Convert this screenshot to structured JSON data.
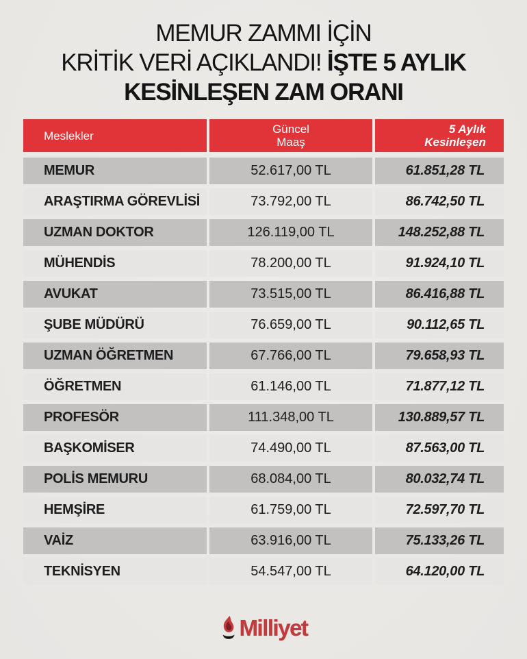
{
  "colors": {
    "background": "#ebe9e6",
    "header_red": "#e13438",
    "header_text": "#ffffff",
    "row_dark_gray": "#c2c1c0",
    "row_light_gray": "#e7e5e3",
    "body_text": "#1d1d1d",
    "logo_red": "#c33a3e"
  },
  "title": {
    "line1": "MEMUR ZAMMI İÇİN",
    "line2_regular": "KRİTİK VERİ AÇIKLANDI!",
    "line2_bold": "İŞTE 5 AYLIK",
    "line3": "KESİNLEŞEN ZAM ORANI"
  },
  "table": {
    "header": {
      "col1": "Meslekler",
      "col2_line1": "Güncel",
      "col2_line2": "Maaş",
      "col3_line1": "5 Aylık",
      "col3_line2": "Kesinleşen"
    },
    "rows": [
      {
        "profession": "MEMUR",
        "current_salary": "52.617,00 TL",
        "confirmed_salary": "61.851,28 TL"
      },
      {
        "profession": "ARAŞTIRMA GÖREVLİSİ",
        "current_salary": "73.792,00 TL",
        "confirmed_salary": "86.742,50 TL"
      },
      {
        "profession": "UZMAN DOKTOR",
        "current_salary": "126.119,00 TL",
        "confirmed_salary": "148.252,88 TL"
      },
      {
        "profession": "MÜHENDİS",
        "current_salary": "78.200,00 TL",
        "confirmed_salary": "91.924,10 TL"
      },
      {
        "profession": "AVUKAT",
        "current_salary": "73.515,00 TL",
        "confirmed_salary": "86.416,88 TL"
      },
      {
        "profession": "ŞUBE MÜDÜRÜ",
        "current_salary": "76.659,00 TL",
        "confirmed_salary": "90.112,65 TL"
      },
      {
        "profession": "UZMAN ÖĞRETMEN",
        "current_salary": "67.766,00 TL",
        "confirmed_salary": "79.658,93 TL"
      },
      {
        "profession": "ÖĞRETMEN",
        "current_salary": "61.146,00 TL",
        "confirmed_salary": "71.877,12 TL"
      },
      {
        "profession": "PROFESÖR",
        "current_salary": "111.348,00 TL",
        "confirmed_salary": "130.889,57 TL"
      },
      {
        "profession": "BAŞKOMİSER",
        "current_salary": "74.490,00 TL",
        "confirmed_salary": "87.563,00 TL"
      },
      {
        "profession": "POLİS MEMURU",
        "current_salary": "68.084,00 TL",
        "confirmed_salary": "80.032,74 TL"
      },
      {
        "profession": "HEMŞİRE",
        "current_salary": "61.759,00 TL",
        "confirmed_salary": "72.597,70 TL"
      },
      {
        "profession": "VAİZ",
        "current_salary": "63.916,00 TL",
        "confirmed_salary": "75.133,26 TL"
      },
      {
        "profession": "TEKNİSYEN",
        "current_salary": "54.547,00 TL",
        "confirmed_salary": "64.120,00 TL"
      }
    ]
  },
  "footer": {
    "logo_text": "Milliyet",
    "logo_icon": "flame-icon"
  },
  "chart_data": {
    "type": "table",
    "title": "MEMUR ZAMMI İÇİN KRİTİK VERİ AÇIKLANDI! İŞTE 5 AYLIK KESİNLEŞEN ZAM ORANI",
    "columns": [
      "Meslekler",
      "Güncel Maaş",
      "5 Aylık Kesinleşen"
    ],
    "rows": [
      [
        "MEMUR",
        "52.617,00 TL",
        "61.851,28 TL"
      ],
      [
        "ARAŞTIRMA GÖREVLİSİ",
        "73.792,00 TL",
        "86.742,50 TL"
      ],
      [
        "UZMAN DOKTOR",
        "126.119,00 TL",
        "148.252,88 TL"
      ],
      [
        "MÜHENDİS",
        "78.200,00 TL",
        "91.924,10 TL"
      ],
      [
        "AVUKAT",
        "73.515,00 TL",
        "86.416,88 TL"
      ],
      [
        "ŞUBE MÜDÜRÜ",
        "76.659,00 TL",
        "90.112,65 TL"
      ],
      [
        "UZMAN ÖĞRETMEN",
        "67.766,00 TL",
        "79.658,93 TL"
      ],
      [
        "ÖĞRETMEN",
        "61.146,00 TL",
        "71.877,12 TL"
      ],
      [
        "PROFESÖR",
        "111.348,00 TL",
        "130.889,57 TL"
      ],
      [
        "BAŞKOMİSER",
        "74.490,00 TL",
        "87.563,00 TL"
      ],
      [
        "POLİS MEMURU",
        "68.084,00 TL",
        "80.032,74 TL"
      ],
      [
        "HEMŞİRE",
        "61.759,00 TL",
        "72.597,70 TL"
      ],
      [
        "VAİZ",
        "63.916,00 TL",
        "75.133,26 TL"
      ],
      [
        "TEKNİSYEN",
        "54.547,00 TL",
        "64.120,00 TL"
      ]
    ]
  }
}
